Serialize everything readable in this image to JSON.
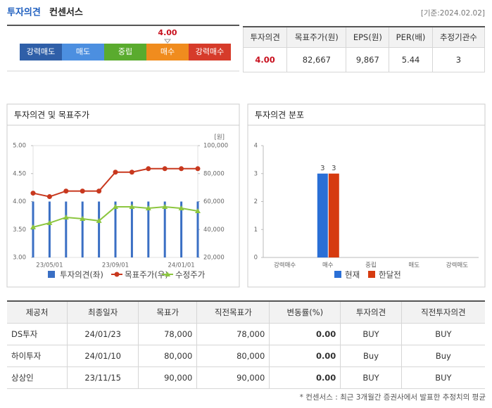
{
  "header": {
    "title_blue": "투자의견",
    "title": "컨센서스",
    "date": "[기준:2024.02.02]"
  },
  "scale": {
    "labels": [
      "강력매도",
      "매도",
      "중립",
      "매수",
      "강력매수"
    ],
    "colors": [
      "#2f5fa8",
      "#4c8fe0",
      "#5aab2e",
      "#f08c1e",
      "#d63b2a"
    ],
    "marker": {
      "value": 4,
      "label": "4.00"
    }
  },
  "summary": {
    "headers": [
      "투자의견",
      "목표주가(원)",
      "EPS(원)",
      "PER(배)",
      "추정기관수"
    ],
    "values": [
      "4.00",
      "82,667",
      "9,867",
      "5.44",
      "3"
    ]
  },
  "chart_data": [
    {
      "type": "bar-line",
      "title": "투자의견 및 목표주가",
      "y2_unit": "[원]",
      "categories": [
        null,
        "23/05/01",
        null,
        null,
        null,
        "23/09/01",
        null,
        null,
        null,
        "24/01/01",
        null
      ],
      "ylim": [
        3,
        5
      ],
      "yticks": [
        {
          "value": 3,
          "label": "3.00"
        },
        {
          "value": 3.5,
          "label": "3.50"
        },
        {
          "value": 4,
          "label": "4.00"
        },
        {
          "value": 4.5,
          "label": "4.50"
        },
        {
          "value": 5,
          "label": "5.00"
        }
      ],
      "y2lim": [
        20000,
        100000
      ],
      "y2ticks": [
        {
          "value": 20000,
          "label": "20,000"
        },
        {
          "value": 40000,
          "label": "40,000"
        },
        {
          "value": 60000,
          "label": "60,000"
        },
        {
          "value": 80000,
          "label": "80,000"
        },
        {
          "value": 100000,
          "label": "100,000"
        }
      ],
      "series": [
        {
          "name": "투자의견(좌)",
          "type": "bar",
          "color": "#3a6fc4",
          "values": [
            4,
            4,
            4,
            4,
            4,
            4,
            4,
            4,
            4,
            4,
            4
          ]
        },
        {
          "name": "목표주가(우)",
          "type": "line",
          "axis": "y2",
          "color": "#c8381e",
          "values": [
            66000,
            63500,
            67500,
            67500,
            67500,
            81000,
            81000,
            83500,
            83500,
            83500,
            83500
          ]
        },
        {
          "name": "수정주가",
          "type": "line",
          "axis": "y2",
          "color": "#8cc63f",
          "values": [
            41700,
            44700,
            48700,
            47700,
            46200,
            56200,
            56200,
            55200,
            56200,
            55200,
            53200
          ]
        }
      ]
    },
    {
      "type": "bar",
      "title": "투자의견 분포",
      "categories": [
        "강력매수",
        "매수",
        "중립",
        "매도",
        "강력매도"
      ],
      "ylim": [
        0,
        4
      ],
      "yticks": [
        0,
        1,
        2,
        3,
        4
      ],
      "series": [
        {
          "name": "현재",
          "color": "#2a6fd6",
          "values": [
            0,
            3,
            0,
            0,
            0
          ]
        },
        {
          "name": "한달전",
          "color": "#d63b10",
          "values": [
            0,
            3,
            0,
            0,
            0
          ]
        }
      ]
    }
  ],
  "table": {
    "headers": [
      "제공처",
      "최종일자",
      "목표가",
      "직전목표가",
      "변동률(%)",
      "투자의견",
      "직전투자의견"
    ],
    "rows": [
      [
        "DS투자",
        "24/01/23",
        "78,000",
        "78,000",
        "0.00",
        "BUY",
        "BUY"
      ],
      [
        "하이투자",
        "24/01/10",
        "80,000",
        "80,000",
        "0.00",
        "Buy",
        "Buy"
      ],
      [
        "상상인",
        "23/11/15",
        "90,000",
        "90,000",
        "0.00",
        "BUY",
        "BUY"
      ]
    ]
  },
  "footnote": "* 컨센서스 : 최근 3개월간 증권사에서 발표한 추정치의 평균"
}
